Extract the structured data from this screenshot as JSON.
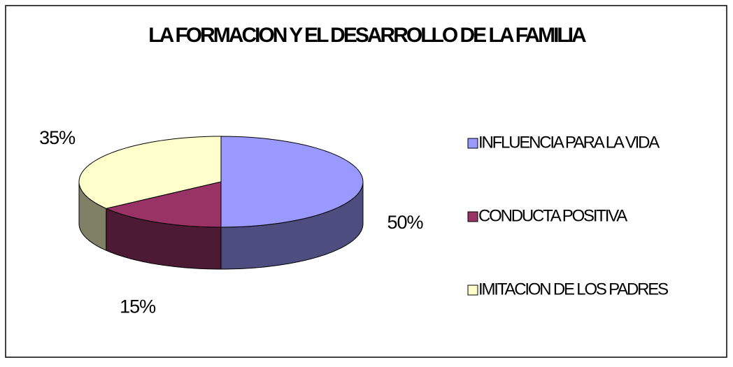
{
  "chart_data": {
    "type": "pie",
    "title": "LA FORMACION Y EL DESARROLLO DE LA FAMILIA",
    "categories": [
      "INFLUENCIA PARA LA VIDA",
      "CONDUCTA POSITIVA",
      "IMITACION DE LOS PADRES"
    ],
    "values": [
      50,
      15,
      35
    ],
    "value_labels": [
      "50%",
      "15%",
      "35%"
    ],
    "colors": [
      "#9999ff",
      "#993366",
      "#ffffcc"
    ],
    "legend": "right"
  }
}
